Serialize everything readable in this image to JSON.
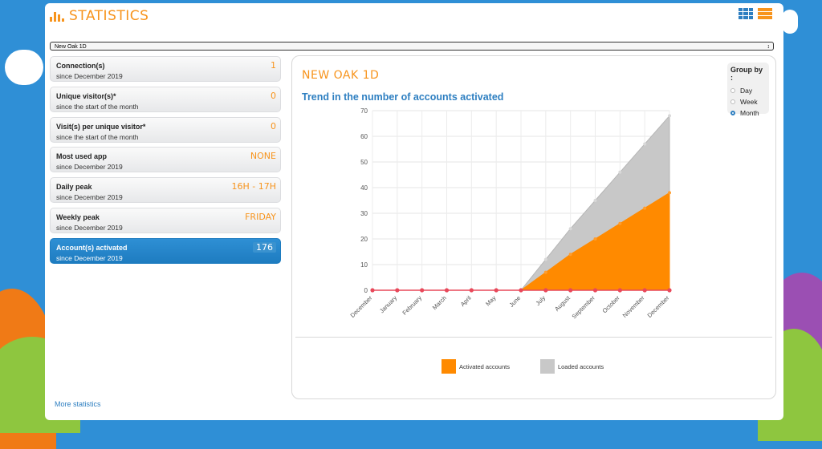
{
  "header": {
    "title": "STATISTICS"
  },
  "selector": {
    "value": "New Oak 1D"
  },
  "stats": [
    {
      "label": "Connection(s)",
      "sub": "since December 2019",
      "value": "1"
    },
    {
      "label": "Unique visitor(s)*",
      "sub": "since the start of the month",
      "value": "0"
    },
    {
      "label": "Visit(s) per unique visitor*",
      "sub": "since the start of the month",
      "value": "0"
    },
    {
      "label": "Most used app",
      "sub": "since December 2019",
      "value": "NONE"
    },
    {
      "label": "Daily peak",
      "sub": "since December 2019",
      "value": "16H - 17H"
    },
    {
      "label": "Weekly peak",
      "sub": "since December 2019",
      "value": "FRIDAY"
    },
    {
      "label": "Account(s) activated",
      "sub": "since December 2019",
      "value": "176",
      "active": true
    }
  ],
  "footer": {
    "more_link": "More statistics"
  },
  "card": {
    "title": "NEW OAK 1D",
    "subtitle": "Trend in the number of accounts activated"
  },
  "groupby": {
    "title": "Group by :",
    "options": [
      "Day",
      "Week",
      "Month"
    ],
    "selected": "Month"
  },
  "colors": {
    "accent": "#f7941d",
    "blue": "#2e7fc1",
    "activated": "#ff8a00",
    "loaded": "#c8c8c8",
    "marker": "#e8485a"
  },
  "chart_data": {
    "type": "area",
    "categories": [
      "December",
      "January",
      "February",
      "March",
      "April",
      "May",
      "June",
      "July",
      "August",
      "September",
      "October",
      "November",
      "December"
    ],
    "series": [
      {
        "name": "Activated accounts",
        "values": [
          0,
          0,
          0,
          0,
          0,
          0,
          0,
          7,
          14,
          20,
          26,
          32,
          38
        ]
      },
      {
        "name": "Loaded accounts",
        "values": [
          0,
          0,
          0,
          0,
          0,
          0,
          0,
          12,
          24,
          35,
          46,
          57,
          68
        ]
      }
    ],
    "ylim": [
      0,
      70
    ],
    "yticks": [
      0,
      10,
      20,
      30,
      40,
      50,
      60,
      70
    ],
    "grid": true,
    "stacked_display": "overlay",
    "legend": "bottom"
  }
}
